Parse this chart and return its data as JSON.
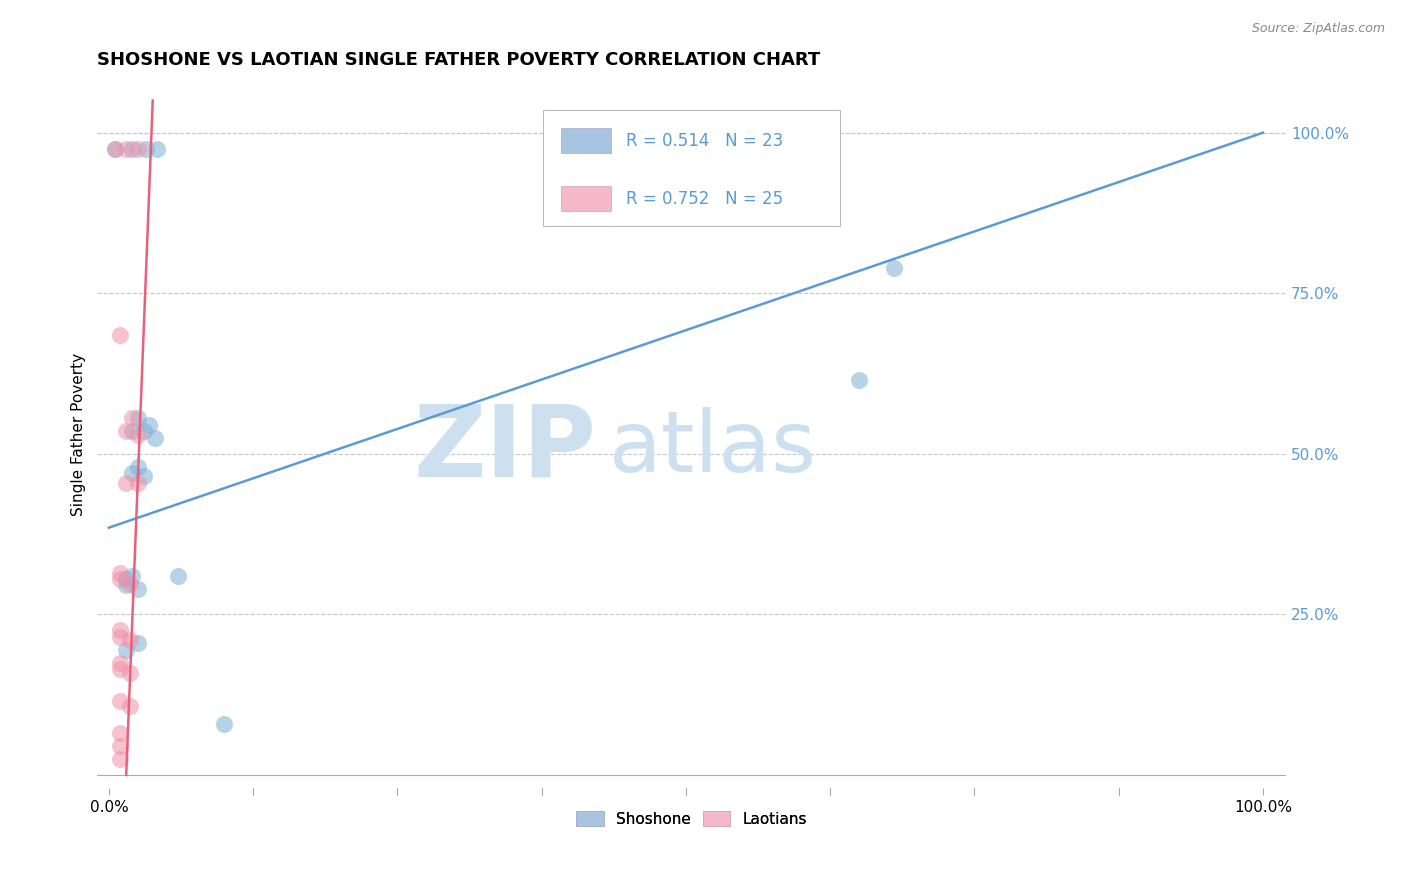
{
  "title": "SHOSHONE VS LAOTIAN SINGLE FATHER POVERTY CORRELATION CHART",
  "source_text": "Source: ZipAtlas.com",
  "ylabel": "Single Father Poverty",
  "xlim": [
    -0.01,
    1.02
  ],
  "ylim": [
    -0.02,
    1.08
  ],
  "xtick_positions": [
    0.0,
    1.0
  ],
  "xtick_labels": [
    "0.0%",
    "100.0%"
  ],
  "ytick_positions": [
    0.25,
    0.5,
    0.75,
    1.0
  ],
  "ytick_labels": [
    "25.0%",
    "50.0%",
    "75.0%",
    "100.0%"
  ],
  "shoshone_scatter": [
    [
      0.005,
      0.975
    ],
    [
      0.02,
      0.975
    ],
    [
      0.032,
      0.975
    ],
    [
      0.042,
      0.975
    ],
    [
      0.02,
      0.535
    ],
    [
      0.03,
      0.535
    ],
    [
      0.025,
      0.555
    ],
    [
      0.035,
      0.545
    ],
    [
      0.04,
      0.525
    ],
    [
      0.02,
      0.47
    ],
    [
      0.03,
      0.465
    ],
    [
      0.025,
      0.48
    ],
    [
      0.015,
      0.295
    ],
    [
      0.025,
      0.29
    ],
    [
      0.015,
      0.305
    ],
    [
      0.02,
      0.31
    ],
    [
      0.015,
      0.195
    ],
    [
      0.025,
      0.205
    ],
    [
      0.06,
      0.31
    ],
    [
      0.1,
      0.08
    ],
    [
      0.62,
      0.87
    ],
    [
      0.68,
      0.79
    ],
    [
      0.65,
      0.615
    ]
  ],
  "laotian_scatter": [
    [
      0.005,
      0.975
    ],
    [
      0.015,
      0.975
    ],
    [
      0.025,
      0.975
    ],
    [
      0.01,
      0.685
    ],
    [
      0.015,
      0.535
    ],
    [
      0.025,
      0.53
    ],
    [
      0.02,
      0.555
    ],
    [
      0.015,
      0.455
    ],
    [
      0.025,
      0.455
    ],
    [
      0.01,
      0.305
    ],
    [
      0.018,
      0.298
    ],
    [
      0.01,
      0.315
    ],
    [
      0.01,
      0.215
    ],
    [
      0.018,
      0.21
    ],
    [
      0.01,
      0.225
    ],
    [
      0.01,
      0.165
    ],
    [
      0.018,
      0.158
    ],
    [
      0.01,
      0.175
    ],
    [
      0.01,
      0.115
    ],
    [
      0.018,
      0.108
    ],
    [
      0.01,
      0.065
    ],
    [
      0.01,
      0.045
    ],
    [
      0.01,
      0.025
    ]
  ],
  "shoshone_line_x": [
    0.0,
    1.0
  ],
  "shoshone_line_y": [
    0.385,
    1.0
  ],
  "laotian_line_x": [
    0.015,
    0.038
  ],
  "laotian_line_y": [
    0.0,
    1.05
  ],
  "shoshone_dot_color": "#7bafd4",
  "laotian_dot_color": "#f090a8",
  "shoshone_line_color": "#5b9bd5",
  "laotian_line_color": "#e8607a",
  "shoshone_legend_color": "#a8c4e0",
  "laotian_legend_color": "#f4b8c8",
  "background_color": "#ffffff",
  "grid_color": "#c8c8c8",
  "watermark_zip_color": "#cce0f0",
  "watermark_atlas_color": "#cce0f0",
  "right_tick_color": "#5b9bd5",
  "legend_r_color": "#5b9bd5",
  "legend_n_color": "#5b9bd5",
  "legend_text_color": "#222222",
  "source_color": "#888888"
}
